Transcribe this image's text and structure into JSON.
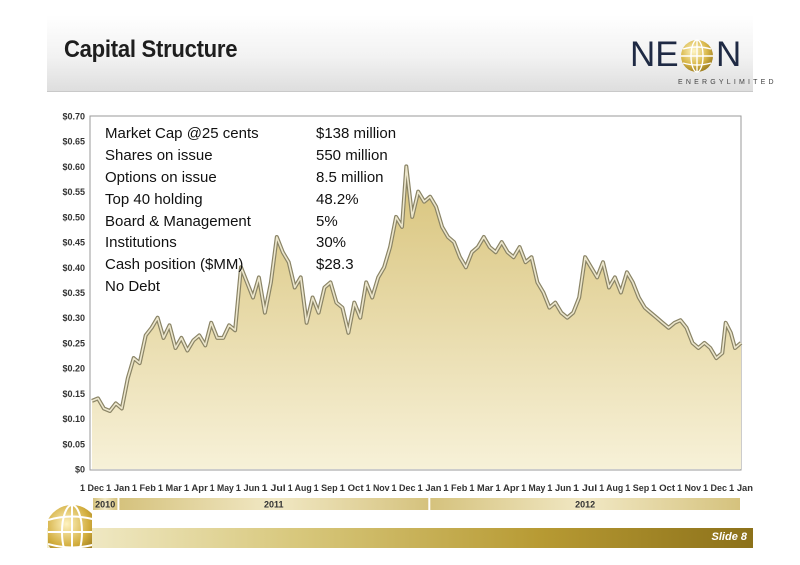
{
  "slide": {
    "title": "Capital Structure",
    "slide_number": "Slide 8",
    "logo": {
      "word_left": "NE",
      "word_right": "N",
      "tagline": "ENERGYLIMITED"
    }
  },
  "stats": [
    {
      "label": "Market Cap @25 cents",
      "value": "$138 million"
    },
    {
      "label": "Shares on issue",
      "value": "550 million"
    },
    {
      "label": "Options on issue",
      "value": "8.5 million"
    },
    {
      "label": "Top 40 holding",
      "value": "48.2%"
    },
    {
      "label": "Board & Management",
      "value": "5%"
    },
    {
      "label": "Institutions",
      "value": "30%"
    },
    {
      "label": "Cash position ($MM)",
      "value": "$28.3"
    },
    {
      "label": "No Debt",
      "value": ""
    }
  ],
  "colors": {
    "area_top": "#d8c37a",
    "area_bottom": "#f7f1d8",
    "line": "#8a8466",
    "line_highlight": "#ece6cc",
    "gold": "#b79a33"
  },
  "chart_data": {
    "type": "area",
    "title": "",
    "xlabel": "",
    "ylabel": "",
    "ylim": [
      0,
      0.7
    ],
    "y_ticks": [
      "$0",
      "$0.05",
      "$0.10",
      "$0.15",
      "$0.20",
      "$0.25",
      "$0.30",
      "$0.35",
      "$0.40",
      "$0.45",
      "$0.50",
      "$0.55",
      "$0.60",
      "$0.65",
      "$0.70"
    ],
    "x_ticks": [
      "1 Dec",
      "1 Jan",
      "1 Feb",
      "1 Mar",
      "1 Apr",
      "1 May",
      "1 Jun",
      "1 Jul",
      "1 Aug",
      "1 Sep",
      "1 Oct",
      "1 Nov",
      "1 Dec",
      "1 Jan",
      "1 Feb",
      "1 Mar",
      "1 Apr",
      "1 May",
      "1 Jun",
      "1 Jul",
      "1 Aug",
      "1 Sep",
      "1 Oct",
      "1 Nov",
      "1 Dec",
      "1 Jan"
    ],
    "x_range": [
      "2010-12-01",
      "2013-01-01"
    ],
    "years": [
      {
        "label": "2010",
        "from": "2010-12-01",
        "to": "2011-01-01"
      },
      {
        "label": "2011",
        "from": "2011-01-01",
        "to": "2012-01-01"
      },
      {
        "label": "2012",
        "from": "2012-01-01",
        "to": "2013-01-01"
      }
    ],
    "grid": false,
    "series": [
      {
        "values": [
          [
            "2010-12-01",
            0.135
          ],
          [
            "2010-12-08",
            0.14
          ],
          [
            "2010-12-15",
            0.12
          ],
          [
            "2010-12-22",
            0.115
          ],
          [
            "2010-12-29",
            0.13
          ],
          [
            "2011-01-05",
            0.12
          ],
          [
            "2011-01-12",
            0.18
          ],
          [
            "2011-01-19",
            0.22
          ],
          [
            "2011-01-26",
            0.21
          ],
          [
            "2011-02-02",
            0.265
          ],
          [
            "2011-02-09",
            0.28
          ],
          [
            "2011-02-16",
            0.3
          ],
          [
            "2011-02-23",
            0.26
          ],
          [
            "2011-03-02",
            0.285
          ],
          [
            "2011-03-09",
            0.24
          ],
          [
            "2011-03-16",
            0.26
          ],
          [
            "2011-03-23",
            0.235
          ],
          [
            "2011-03-30",
            0.255
          ],
          [
            "2011-04-06",
            0.265
          ],
          [
            "2011-04-13",
            0.245
          ],
          [
            "2011-04-20",
            0.29
          ],
          [
            "2011-04-27",
            0.26
          ],
          [
            "2011-05-04",
            0.26
          ],
          [
            "2011-05-11",
            0.285
          ],
          [
            "2011-05-18",
            0.275
          ],
          [
            "2011-05-25",
            0.4
          ],
          [
            "2011-06-01",
            0.37
          ],
          [
            "2011-06-08",
            0.34
          ],
          [
            "2011-06-15",
            0.38
          ],
          [
            "2011-06-22",
            0.31
          ],
          [
            "2011-06-29",
            0.37
          ],
          [
            "2011-07-06",
            0.46
          ],
          [
            "2011-07-13",
            0.43
          ],
          [
            "2011-07-20",
            0.41
          ],
          [
            "2011-07-27",
            0.36
          ],
          [
            "2011-08-03",
            0.38
          ],
          [
            "2011-08-10",
            0.29
          ],
          [
            "2011-08-17",
            0.34
          ],
          [
            "2011-08-24",
            0.31
          ],
          [
            "2011-08-31",
            0.36
          ],
          [
            "2011-09-07",
            0.37
          ],
          [
            "2011-09-14",
            0.33
          ],
          [
            "2011-09-21",
            0.32
          ],
          [
            "2011-09-28",
            0.27
          ],
          [
            "2011-10-05",
            0.33
          ],
          [
            "2011-10-12",
            0.3
          ],
          [
            "2011-10-19",
            0.37
          ],
          [
            "2011-10-26",
            0.34
          ],
          [
            "2011-11-02",
            0.38
          ],
          [
            "2011-11-09",
            0.4
          ],
          [
            "2011-11-16",
            0.44
          ],
          [
            "2011-11-23",
            0.5
          ],
          [
            "2011-11-30",
            0.48
          ],
          [
            "2011-12-05",
            0.6
          ],
          [
            "2011-12-12",
            0.5
          ],
          [
            "2011-12-19",
            0.55
          ],
          [
            "2011-12-26",
            0.53
          ],
          [
            "2012-01-02",
            0.54
          ],
          [
            "2012-01-09",
            0.52
          ],
          [
            "2012-01-16",
            0.48
          ],
          [
            "2012-01-23",
            0.46
          ],
          [
            "2012-01-30",
            0.45
          ],
          [
            "2012-02-06",
            0.42
          ],
          [
            "2012-02-13",
            0.4
          ],
          [
            "2012-02-20",
            0.43
          ],
          [
            "2012-02-27",
            0.44
          ],
          [
            "2012-03-05",
            0.46
          ],
          [
            "2012-03-12",
            0.44
          ],
          [
            "2012-03-19",
            0.43
          ],
          [
            "2012-03-26",
            0.45
          ],
          [
            "2012-04-02",
            0.43
          ],
          [
            "2012-04-09",
            0.42
          ],
          [
            "2012-04-16",
            0.44
          ],
          [
            "2012-04-23",
            0.41
          ],
          [
            "2012-04-30",
            0.42
          ],
          [
            "2012-05-07",
            0.37
          ],
          [
            "2012-05-14",
            0.35
          ],
          [
            "2012-05-21",
            0.32
          ],
          [
            "2012-05-28",
            0.33
          ],
          [
            "2012-06-04",
            0.31
          ],
          [
            "2012-06-11",
            0.3
          ],
          [
            "2012-06-18",
            0.31
          ],
          [
            "2012-06-25",
            0.34
          ],
          [
            "2012-07-02",
            0.42
          ],
          [
            "2012-07-09",
            0.4
          ],
          [
            "2012-07-16",
            0.38
          ],
          [
            "2012-07-23",
            0.41
          ],
          [
            "2012-07-30",
            0.36
          ],
          [
            "2012-08-06",
            0.38
          ],
          [
            "2012-08-13",
            0.35
          ],
          [
            "2012-08-20",
            0.39
          ],
          [
            "2012-08-27",
            0.37
          ],
          [
            "2012-09-03",
            0.34
          ],
          [
            "2012-09-10",
            0.32
          ],
          [
            "2012-09-17",
            0.31
          ],
          [
            "2012-09-24",
            0.3
          ],
          [
            "2012-10-01",
            0.29
          ],
          [
            "2012-10-08",
            0.28
          ],
          [
            "2012-10-15",
            0.29
          ],
          [
            "2012-10-22",
            0.295
          ],
          [
            "2012-10-29",
            0.28
          ],
          [
            "2012-11-05",
            0.25
          ],
          [
            "2012-11-12",
            0.24
          ],
          [
            "2012-11-19",
            0.25
          ],
          [
            "2012-11-26",
            0.24
          ],
          [
            "2012-12-03",
            0.22
          ],
          [
            "2012-12-10",
            0.23
          ],
          [
            "2012-12-14",
            0.29
          ],
          [
            "2012-12-20",
            0.27
          ],
          [
            "2012-12-25",
            0.24
          ],
          [
            "2013-01-01",
            0.25
          ]
        ]
      }
    ]
  }
}
